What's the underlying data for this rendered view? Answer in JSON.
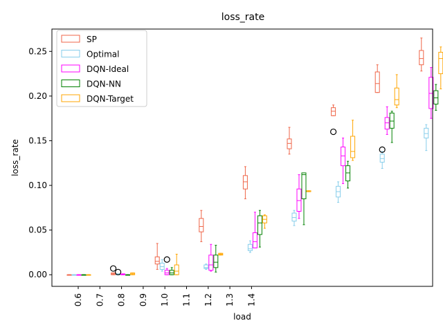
{
  "chart_data": {
    "type": "box",
    "title": "loss_rate",
    "xlabel": "load",
    "ylabel": "loss_rate",
    "ylim": [
      -0.013,
      0.275
    ],
    "yticks": [
      "0.00",
      "0.05",
      "0.10",
      "0.15",
      "0.20",
      "0.25"
    ],
    "ytick_values": [
      0.0,
      0.05,
      0.1,
      0.15,
      0.2,
      0.25
    ],
    "x_tick_labels": [
      "0.6",
      "0.7",
      "0.8",
      "0.9",
      "1.0",
      "1.1",
      "1.2",
      "1.3",
      "1.4"
    ],
    "legend_position": "upper-left",
    "groups": [
      "0.6",
      "0.7",
      "0.8",
      "0.9",
      "1.0",
      "1.1",
      "1.2",
      "1.3",
      "1.4"
    ],
    "series": [
      {
        "name": "SP",
        "color": "#ef6548",
        "boxes": [
          {
            "whislo": 0.0,
            "q1": 0.0,
            "med": 0.0,
            "q3": 0.0,
            "whishi": 0.0,
            "fliers": []
          },
          {
            "whislo": 0.0,
            "q1": 0.0,
            "med": 0.001,
            "q3": 0.002,
            "whishi": 0.002,
            "fliers": [
              0.007
            ]
          },
          {
            "whislo": 0.006,
            "q1": 0.012,
            "med": 0.015,
            "q3": 0.02,
            "whishi": 0.035,
            "fliers": []
          },
          {
            "whislo": 0.037,
            "q1": 0.048,
            "med": 0.054,
            "q3": 0.063,
            "whishi": 0.072,
            "fliers": []
          },
          {
            "whislo": 0.085,
            "q1": 0.096,
            "med": 0.104,
            "q3": 0.111,
            "whishi": 0.121,
            "fliers": []
          },
          {
            "whislo": 0.135,
            "q1": 0.141,
            "med": 0.147,
            "q3": 0.152,
            "whishi": 0.165,
            "fliers": []
          },
          {
            "whislo": 0.178,
            "q1": 0.178,
            "med": 0.183,
            "q3": 0.187,
            "whishi": 0.19,
            "fliers": [
              0.16
            ]
          },
          {
            "whislo": 0.204,
            "q1": 0.204,
            "med": 0.214,
            "q3": 0.227,
            "whishi": 0.235,
            "fliers": []
          },
          {
            "whislo": 0.228,
            "q1": 0.235,
            "med": 0.242,
            "q3": 0.251,
            "whishi": 0.265,
            "fliers": []
          }
        ]
      },
      {
        "name": "Optimal",
        "color": "#87ceeb",
        "boxes": [
          {
            "whislo": 0.0,
            "q1": 0.0,
            "med": 0.0,
            "q3": 0.0,
            "whishi": 0.0,
            "fliers": []
          },
          {
            "whislo": 0.0,
            "q1": 0.0,
            "med": 0.0,
            "q3": 0.001,
            "whishi": 0.001,
            "fliers": [
              0.003
            ]
          },
          {
            "whislo": 0.004,
            "q1": 0.006,
            "med": 0.009,
            "q3": 0.013,
            "whishi": 0.017,
            "fliers": []
          },
          {
            "whislo": 0.006,
            "q1": 0.007,
            "med": 0.008,
            "q3": 0.011,
            "whishi": 0.012,
            "fliers": []
          },
          {
            "whislo": 0.025,
            "q1": 0.027,
            "med": 0.029,
            "q3": 0.034,
            "whishi": 0.038,
            "fliers": []
          },
          {
            "whislo": 0.055,
            "q1": 0.06,
            "med": 0.064,
            "q3": 0.069,
            "whishi": 0.072,
            "fliers": []
          },
          {
            "whislo": 0.081,
            "q1": 0.087,
            "med": 0.093,
            "q3": 0.099,
            "whishi": 0.104,
            "fliers": []
          },
          {
            "whislo": 0.119,
            "q1": 0.126,
            "med": 0.13,
            "q3": 0.135,
            "whishi": 0.138,
            "fliers": [
              0.14
            ]
          },
          {
            "whislo": 0.139,
            "q1": 0.153,
            "med": 0.158,
            "q3": 0.164,
            "whishi": 0.168,
            "fliers": []
          }
        ]
      },
      {
        "name": "DQN-Ideal",
        "color": "#ff00ff",
        "boxes": [
          {
            "whislo": 0.0,
            "q1": 0.0,
            "med": 0.0,
            "q3": 0.0,
            "whishi": 0.0,
            "fliers": []
          },
          {
            "whislo": 0.0,
            "q1": 0.0,
            "med": 0.0,
            "q3": 0.001,
            "whishi": 0.001,
            "fliers": []
          },
          {
            "whislo": 0.0,
            "q1": 0.0,
            "med": 0.002,
            "q3": 0.005,
            "whishi": 0.007,
            "fliers": [
              0.017
            ]
          },
          {
            "whislo": 0.004,
            "q1": 0.005,
            "med": 0.011,
            "q3": 0.022,
            "whishi": 0.034,
            "fliers": []
          },
          {
            "whislo": 0.03,
            "q1": 0.03,
            "med": 0.037,
            "q3": 0.047,
            "whishi": 0.07,
            "fliers": []
          },
          {
            "whislo": 0.063,
            "q1": 0.071,
            "med": 0.083,
            "q3": 0.096,
            "whishi": 0.112,
            "fliers": []
          },
          {
            "whislo": 0.102,
            "q1": 0.122,
            "med": 0.133,
            "q3": 0.143,
            "whishi": 0.153,
            "fliers": []
          },
          {
            "whislo": 0.157,
            "q1": 0.163,
            "med": 0.17,
            "q3": 0.176,
            "whishi": 0.188,
            "fliers": []
          },
          {
            "whislo": 0.175,
            "q1": 0.186,
            "med": 0.203,
            "q3": 0.221,
            "whishi": 0.232,
            "fliers": []
          }
        ]
      },
      {
        "name": "DQN-NN",
        "color": "#008000",
        "boxes": [
          {
            "whislo": 0.0,
            "q1": 0.0,
            "med": 0.0,
            "q3": 0.0,
            "whishi": 0.0,
            "fliers": []
          },
          {
            "whislo": 0.0,
            "q1": 0.0,
            "med": 0.0,
            "q3": 0.0,
            "whishi": 0.0,
            "fliers": []
          },
          {
            "whislo": 0.0,
            "q1": 0.0,
            "med": 0.002,
            "q3": 0.005,
            "whishi": 0.008,
            "fliers": []
          },
          {
            "whislo": 0.003,
            "q1": 0.008,
            "med": 0.014,
            "q3": 0.022,
            "whishi": 0.033,
            "fliers": []
          },
          {
            "whislo": 0.031,
            "q1": 0.045,
            "med": 0.058,
            "q3": 0.066,
            "whishi": 0.072,
            "fliers": []
          },
          {
            "whislo": 0.056,
            "q1": 0.085,
            "med": 0.112,
            "q3": 0.114,
            "whishi": 0.114,
            "fliers": []
          },
          {
            "whislo": 0.097,
            "q1": 0.105,
            "med": 0.114,
            "q3": 0.122,
            "whishi": 0.127,
            "fliers": []
          },
          {
            "whislo": 0.148,
            "q1": 0.164,
            "med": 0.172,
            "q3": 0.181,
            "whishi": 0.183,
            "fliers": []
          },
          {
            "whislo": 0.184,
            "q1": 0.191,
            "med": 0.198,
            "q3": 0.206,
            "whishi": 0.213,
            "fliers": []
          }
        ]
      },
      {
        "name": "DQN-Target",
        "color": "#ffa500",
        "boxes": [
          {
            "whislo": 0.0,
            "q1": 0.0,
            "med": 0.0,
            "q3": 0.0,
            "whishi": 0.0,
            "fliers": []
          },
          {
            "whislo": 0.0,
            "q1": 0.0,
            "med": 0.001,
            "q3": 0.002,
            "whishi": 0.002,
            "fliers": []
          },
          {
            "whislo": 0.0,
            "q1": 0.0,
            "med": 0.004,
            "q3": 0.011,
            "whishi": 0.023,
            "fliers": []
          },
          {
            "whislo": 0.022,
            "q1": 0.022,
            "med": 0.023,
            "q3": 0.024,
            "whishi": 0.024,
            "fliers": []
          },
          {
            "whislo": 0.052,
            "q1": 0.058,
            "med": 0.062,
            "q3": 0.066,
            "whishi": 0.067,
            "fliers": []
          },
          {
            "whislo": 0.093,
            "q1": 0.093,
            "med": 0.093,
            "q3": 0.094,
            "whishi": 0.094,
            "fliers": []
          },
          {
            "whislo": 0.128,
            "q1": 0.131,
            "med": 0.138,
            "q3": 0.155,
            "whishi": 0.173,
            "fliers": []
          },
          {
            "whislo": 0.187,
            "q1": 0.19,
            "med": 0.196,
            "q3": 0.209,
            "whishi": 0.224,
            "fliers": []
          },
          {
            "whislo": 0.208,
            "q1": 0.225,
            "med": 0.242,
            "q3": 0.249,
            "whishi": 0.255,
            "fliers": []
          }
        ]
      }
    ]
  }
}
